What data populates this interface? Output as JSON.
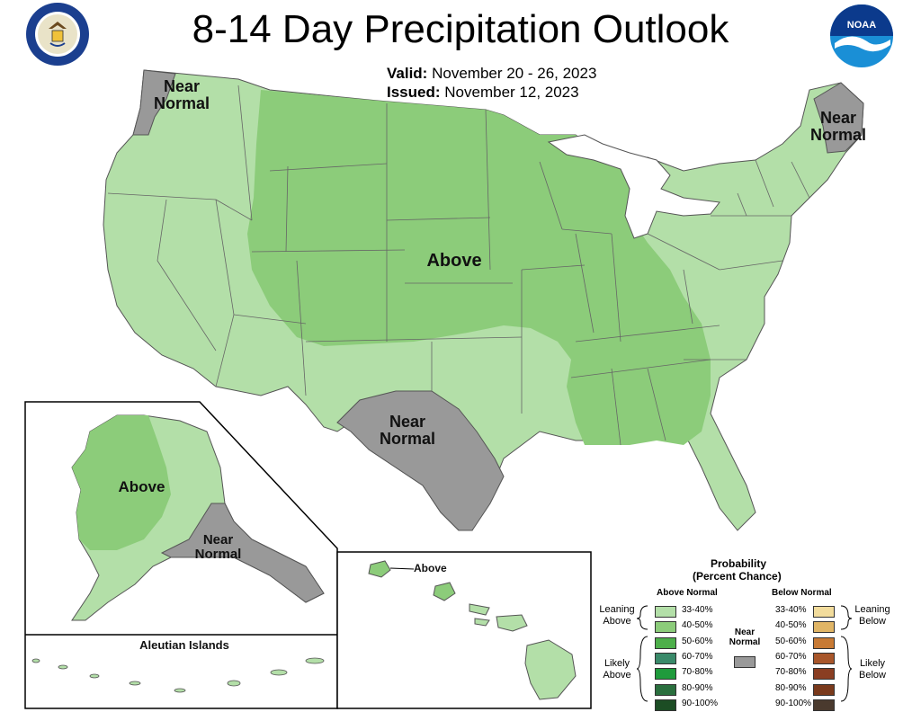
{
  "header": {
    "title": "8-14 Day Precipitation Outlook",
    "valid_label": "Valid:",
    "valid_value": "November 20 - 26, 2023",
    "issued_label": "Issued:",
    "issued_value": "November 12, 2023"
  },
  "logos": {
    "commerce_seal_text": "DEPARTMENT OF COMMERCE · UNITED STATES OF AMERICA",
    "noaa_text": "NOAA"
  },
  "map_labels": {
    "nw_near_normal": "Near Normal",
    "ne_near_normal": "Near Normal",
    "center_above": "Above",
    "tx_near_normal": "Near Normal",
    "ak_above": "Above",
    "ak_near_normal": "Near Normal",
    "aleutian": "Aleutian Islands",
    "hi_above": "Above"
  },
  "legend": {
    "title_line1": "Probability",
    "title_line2": "(Percent Chance)",
    "above_header": "Above Normal",
    "below_header": "Below Normal",
    "near_normal": "Near Normal",
    "leaning_above": "Leaning Above",
    "likely_above": "Likely Above",
    "leaning_below": "Leaning Below",
    "likely_below": "Likely Below",
    "above_bins": [
      {
        "label": "33-40%",
        "color": "#b3dfa8"
      },
      {
        "label": "40-50%",
        "color": "#8ccc7a"
      },
      {
        "label": "50-60%",
        "color": "#4daf4a"
      },
      {
        "label": "60-70%",
        "color": "#3a8a6a"
      },
      {
        "label": "70-80%",
        "color": "#1f9b3c"
      },
      {
        "label": "80-90%",
        "color": "#2a6f3e"
      },
      {
        "label": "90-100%",
        "color": "#1c4d24"
      }
    ],
    "below_bins": [
      {
        "label": "33-40%",
        "color": "#f2dc9c"
      },
      {
        "label": "40-50%",
        "color": "#e0b566"
      },
      {
        "label": "50-60%",
        "color": "#c87a34"
      },
      {
        "label": "60-70%",
        "color": "#a8562a"
      },
      {
        "label": "70-80%",
        "color": "#8a3e22"
      },
      {
        "label": "80-90%",
        "color": "#7a3a1c"
      },
      {
        "label": "90-100%",
        "color": "#4a3a2e"
      }
    ],
    "near_color": "#999999"
  },
  "colors": {
    "light_green": "#b3dfa8",
    "mid_green": "#8ccc7a",
    "gray": "#999999",
    "water": "#ffffff",
    "border": "#555555"
  }
}
